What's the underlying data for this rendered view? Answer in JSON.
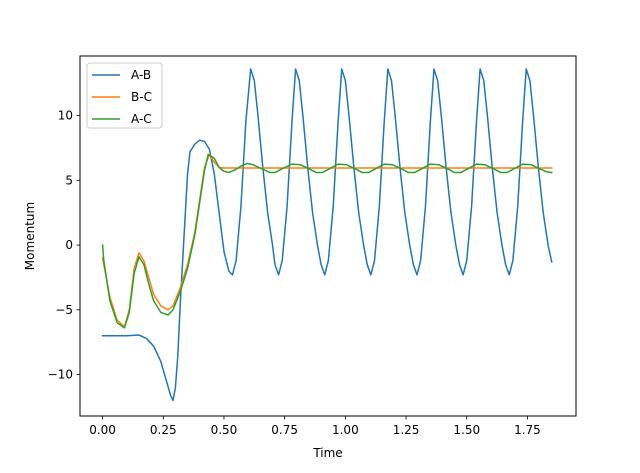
{
  "chart_data": {
    "type": "line",
    "title": "",
    "xlabel": "Time",
    "ylabel": "Momentum",
    "xlim": [
      -0.093,
      1.95
    ],
    "ylim": [
      -13.2,
      14.6
    ],
    "xticks": [
      0.0,
      0.25,
      0.5,
      0.75,
      1.0,
      1.25,
      1.5,
      1.75
    ],
    "xtick_labels": [
      "0.00",
      "0.25",
      "0.50",
      "0.75",
      "1.00",
      "1.25",
      "1.50",
      "1.75"
    ],
    "yticks": [
      -10,
      -5,
      0,
      5,
      10
    ],
    "ytick_labels": [
      "−10",
      "−5",
      "0",
      "5",
      "10"
    ],
    "grid": false,
    "legend_position": "upper-left",
    "series": [
      {
        "name": "A-B",
        "color": "#1f77b4",
        "points": [
          [
            0.0,
            -7.0
          ],
          [
            0.05,
            -7.0
          ],
          [
            0.1,
            -7.0
          ],
          [
            0.15,
            -6.95
          ],
          [
            0.18,
            -7.2
          ],
          [
            0.21,
            -7.8
          ],
          [
            0.24,
            -9.0
          ],
          [
            0.26,
            -10.3
          ],
          [
            0.28,
            -11.6
          ],
          [
            0.29,
            -12.0
          ],
          [
            0.3,
            -11.0
          ],
          [
            0.31,
            -8.5
          ],
          [
            0.32,
            -4.5
          ],
          [
            0.335,
            0.5
          ],
          [
            0.35,
            5.5
          ],
          [
            0.36,
            7.2
          ],
          [
            0.38,
            7.8
          ],
          [
            0.4,
            8.1
          ],
          [
            0.42,
            8.0
          ],
          [
            0.44,
            7.4
          ],
          [
            0.46,
            5.5
          ],
          [
            0.48,
            2.5
          ],
          [
            0.5,
            -0.5
          ],
          [
            0.52,
            -2.0
          ],
          [
            0.535,
            -2.3
          ],
          [
            0.55,
            -1.2
          ],
          [
            0.57,
            3.0
          ],
          [
            0.59,
            9.5
          ],
          [
            0.61,
            13.6
          ],
          [
            0.625,
            12.7
          ],
          [
            0.64,
            10.0
          ],
          [
            0.66,
            6.0
          ],
          [
            0.68,
            2.5
          ],
          [
            0.7,
            0.0
          ],
          [
            0.71,
            -1.5
          ],
          [
            0.725,
            -2.3
          ],
          [
            0.74,
            -1.2
          ],
          [
            0.76,
            3.0
          ],
          [
            0.78,
            9.5
          ],
          [
            0.795,
            13.6
          ],
          [
            0.81,
            12.7
          ],
          [
            0.825,
            10.0
          ],
          [
            0.845,
            6.0
          ],
          [
            0.865,
            2.5
          ],
          [
            0.885,
            0.0
          ],
          [
            0.9,
            -1.5
          ],
          [
            0.915,
            -2.3
          ],
          [
            0.93,
            -1.2
          ],
          [
            0.95,
            3.0
          ],
          [
            0.97,
            9.5
          ],
          [
            0.985,
            13.6
          ],
          [
            1.0,
            12.7
          ],
          [
            1.015,
            10.0
          ],
          [
            1.035,
            6.0
          ],
          [
            1.055,
            2.5
          ],
          [
            1.075,
            0.0
          ],
          [
            1.09,
            -1.5
          ],
          [
            1.105,
            -2.3
          ],
          [
            1.12,
            -1.2
          ],
          [
            1.14,
            3.0
          ],
          [
            1.16,
            9.5
          ],
          [
            1.175,
            13.6
          ],
          [
            1.19,
            12.7
          ],
          [
            1.205,
            10.0
          ],
          [
            1.225,
            6.0
          ],
          [
            1.245,
            2.5
          ],
          [
            1.265,
            0.0
          ],
          [
            1.28,
            -1.5
          ],
          [
            1.295,
            -2.3
          ],
          [
            1.31,
            -1.2
          ],
          [
            1.33,
            3.0
          ],
          [
            1.35,
            9.5
          ],
          [
            1.365,
            13.6
          ],
          [
            1.38,
            12.7
          ],
          [
            1.395,
            10.0
          ],
          [
            1.415,
            6.0
          ],
          [
            1.435,
            2.5
          ],
          [
            1.455,
            0.0
          ],
          [
            1.47,
            -1.5
          ],
          [
            1.485,
            -2.3
          ],
          [
            1.5,
            -1.2
          ],
          [
            1.52,
            3.0
          ],
          [
            1.54,
            9.5
          ],
          [
            1.555,
            13.6
          ],
          [
            1.57,
            12.7
          ],
          [
            1.585,
            10.0
          ],
          [
            1.605,
            6.0
          ],
          [
            1.625,
            2.5
          ],
          [
            1.645,
            0.0
          ],
          [
            1.66,
            -1.5
          ],
          [
            1.675,
            -2.3
          ],
          [
            1.69,
            -1.2
          ],
          [
            1.71,
            3.0
          ],
          [
            1.73,
            9.5
          ],
          [
            1.745,
            13.6
          ],
          [
            1.76,
            12.7
          ],
          [
            1.775,
            10.0
          ],
          [
            1.795,
            6.0
          ],
          [
            1.815,
            2.5
          ],
          [
            1.835,
            0.0
          ],
          [
            1.85,
            -1.3
          ]
        ]
      },
      {
        "name": "B-C",
        "color": "#ff7f0e",
        "points": [
          [
            0.0,
            -1.0
          ],
          [
            0.03,
            -4.0
          ],
          [
            0.06,
            -5.8
          ],
          [
            0.09,
            -6.3
          ],
          [
            0.11,
            -5.0
          ],
          [
            0.13,
            -1.8
          ],
          [
            0.15,
            -0.6
          ],
          [
            0.17,
            -1.2
          ],
          [
            0.19,
            -2.5
          ],
          [
            0.21,
            -3.8
          ],
          [
            0.24,
            -4.7
          ],
          [
            0.27,
            -5.0
          ],
          [
            0.29,
            -4.7
          ],
          [
            0.32,
            -3.3
          ],
          [
            0.35,
            -1.5
          ],
          [
            0.38,
            1.0
          ],
          [
            0.4,
            3.5
          ],
          [
            0.42,
            6.0
          ],
          [
            0.44,
            7.0
          ],
          [
            0.46,
            6.4
          ],
          [
            0.48,
            6.0
          ],
          [
            0.5,
            5.95
          ],
          [
            0.6,
            5.95
          ],
          [
            0.8,
            5.95
          ],
          [
            1.0,
            5.95
          ],
          [
            1.2,
            5.95
          ],
          [
            1.4,
            5.95
          ],
          [
            1.6,
            5.95
          ],
          [
            1.85,
            5.95
          ]
        ]
      },
      {
        "name": "A-C",
        "color": "#2ca02c",
        "points": [
          [
            0.0,
            0.0
          ],
          [
            0.005,
            -1.2
          ],
          [
            0.03,
            -4.3
          ],
          [
            0.06,
            -6.0
          ],
          [
            0.09,
            -6.4
          ],
          [
            0.11,
            -5.2
          ],
          [
            0.13,
            -2.2
          ],
          [
            0.15,
            -0.9
          ],
          [
            0.17,
            -1.5
          ],
          [
            0.19,
            -3.0
          ],
          [
            0.21,
            -4.3
          ],
          [
            0.24,
            -5.2
          ],
          [
            0.27,
            -5.4
          ],
          [
            0.29,
            -5.0
          ],
          [
            0.32,
            -3.6
          ],
          [
            0.35,
            -1.8
          ],
          [
            0.38,
            0.8
          ],
          [
            0.4,
            3.3
          ],
          [
            0.42,
            5.8
          ],
          [
            0.435,
            7.0
          ],
          [
            0.46,
            6.7
          ],
          [
            0.48,
            6.0
          ],
          [
            0.5,
            5.7
          ],
          [
            0.52,
            5.6
          ],
          [
            0.545,
            5.8
          ],
          [
            0.57,
            6.1
          ],
          [
            0.595,
            6.3
          ],
          [
            0.62,
            6.2
          ],
          [
            0.655,
            5.9
          ],
          [
            0.69,
            5.6
          ],
          [
            0.71,
            5.6
          ],
          [
            0.74,
            5.9
          ],
          [
            0.78,
            6.25
          ],
          [
            0.815,
            6.2
          ],
          [
            0.85,
            5.9
          ],
          [
            0.88,
            5.6
          ],
          [
            0.905,
            5.6
          ],
          [
            0.935,
            5.9
          ],
          [
            0.97,
            6.25
          ],
          [
            1.005,
            6.2
          ],
          [
            1.04,
            5.9
          ],
          [
            1.07,
            5.6
          ],
          [
            1.095,
            5.6
          ],
          [
            1.125,
            5.9
          ],
          [
            1.16,
            6.25
          ],
          [
            1.195,
            6.2
          ],
          [
            1.23,
            5.9
          ],
          [
            1.26,
            5.6
          ],
          [
            1.285,
            5.6
          ],
          [
            1.315,
            5.9
          ],
          [
            1.35,
            6.25
          ],
          [
            1.385,
            6.2
          ],
          [
            1.42,
            5.9
          ],
          [
            1.45,
            5.6
          ],
          [
            1.475,
            5.6
          ],
          [
            1.505,
            5.9
          ],
          [
            1.54,
            6.25
          ],
          [
            1.575,
            6.2
          ],
          [
            1.61,
            5.9
          ],
          [
            1.64,
            5.6
          ],
          [
            1.665,
            5.6
          ],
          [
            1.695,
            5.9
          ],
          [
            1.73,
            6.25
          ],
          [
            1.765,
            6.2
          ],
          [
            1.8,
            5.9
          ],
          [
            1.83,
            5.65
          ],
          [
            1.85,
            5.6
          ]
        ]
      }
    ]
  }
}
